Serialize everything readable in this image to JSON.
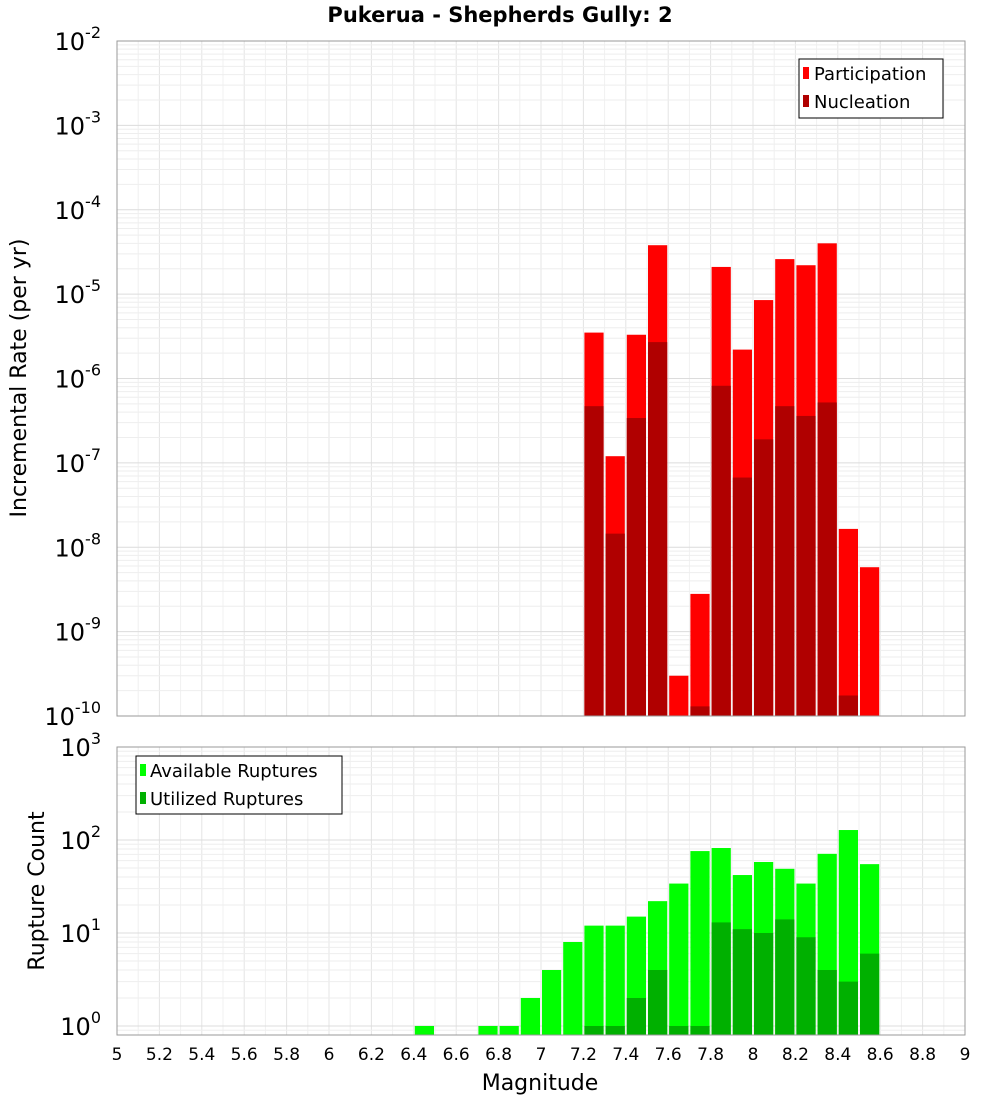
{
  "chart_data": [
    {
      "type": "bar",
      "title": "Pukerua - Shepherds Gully: 2",
      "ylabel": "Incremental Rate (per yr)",
      "xlabel": "",
      "yscale": "log",
      "ylim": [
        1e-10,
        0.01
      ],
      "xlim": [
        5,
        9
      ],
      "ytick_labels": [
        {
          "base": "10",
          "exp": "-10"
        },
        {
          "base": "10",
          "exp": "-9"
        },
        {
          "base": "10",
          "exp": "-8"
        },
        {
          "base": "10",
          "exp": "-7"
        },
        {
          "base": "10",
          "exp": "-6"
        },
        {
          "base": "10",
          "exp": "-5"
        },
        {
          "base": "10",
          "exp": "-4"
        },
        {
          "base": "10",
          "exp": "-3"
        },
        {
          "base": "10",
          "exp": "-2"
        }
      ],
      "legend": {
        "position": "top-right",
        "entries": [
          "Participation",
          "Nucleation"
        ]
      },
      "grid": true,
      "x": [
        7.25,
        7.35,
        7.45,
        7.55,
        7.65,
        7.75,
        7.85,
        7.95,
        8.05,
        8.15,
        8.25,
        8.35,
        8.45,
        8.55
      ],
      "series": [
        {
          "name": "Participation",
          "color": "#ff0000",
          "values": [
            3.5e-06,
            1.2e-07,
            3.3e-06,
            3.8e-05,
            3e-10,
            2.8e-09,
            2.1e-05,
            2.2e-06,
            8.5e-06,
            2.6e-05,
            2.2e-05,
            4e-05,
            1.65e-08,
            5.8e-09
          ]
        },
        {
          "name": "Nucleation",
          "color": "#b00000",
          "values": [
            4.7e-07,
            1.45e-08,
            3.4e-07,
            2.7e-06,
            null,
            1.3e-10,
            8.2e-07,
            6.7e-08,
            1.9e-07,
            4.7e-07,
            3.6e-07,
            5.2e-07,
            1.75e-10,
            null
          ]
        }
      ]
    },
    {
      "type": "bar",
      "title": "",
      "ylabel": "Rupture Count",
      "xlabel": "Magnitude",
      "yscale": "log",
      "ylim": [
        0.8,
        1000
      ],
      "xlim": [
        5,
        9
      ],
      "ytick_labels": [
        {
          "base": "10",
          "exp": "0",
          "value": 1
        },
        {
          "base": "10",
          "exp": "1",
          "value": 10
        },
        {
          "base": "10",
          "exp": "2",
          "value": 100
        },
        {
          "base": "10",
          "exp": "3",
          "value": 1000
        }
      ],
      "xtick_labels": [
        "5",
        "5.2",
        "5.4",
        "5.6",
        "5.8",
        "6",
        "6.2",
        "6.4",
        "6.6",
        "6.8",
        "7",
        "7.2",
        "7.4",
        "7.6",
        "7.8",
        "8",
        "8.2",
        "8.4",
        "8.6",
        "8.8",
        "9"
      ],
      "legend": {
        "position": "top-left",
        "entries": [
          "Available Ruptures",
          "Utilized Ruptures"
        ]
      },
      "grid": true,
      "x": [
        6.45,
        6.75,
        6.85,
        6.95,
        7.05,
        7.15,
        7.25,
        7.35,
        7.45,
        7.55,
        7.65,
        7.75,
        7.85,
        7.95,
        8.05,
        8.15,
        8.25,
        8.35,
        8.45,
        8.55
      ],
      "series": [
        {
          "name": "Available Ruptures",
          "color": "#00ff00",
          "values": [
            1,
            1,
            1,
            2,
            4,
            8,
            12,
            12,
            15,
            22,
            34,
            76,
            82,
            42,
            58,
            49,
            34,
            71,
            128,
            55
          ]
        },
        {
          "name": "Utilized Ruptures",
          "color": "#00b000",
          "values": [
            null,
            null,
            null,
            null,
            null,
            null,
            1,
            1,
            2,
            4,
            1,
            1,
            13,
            11,
            10,
            14,
            9,
            4,
            3,
            6
          ]
        }
      ]
    }
  ]
}
